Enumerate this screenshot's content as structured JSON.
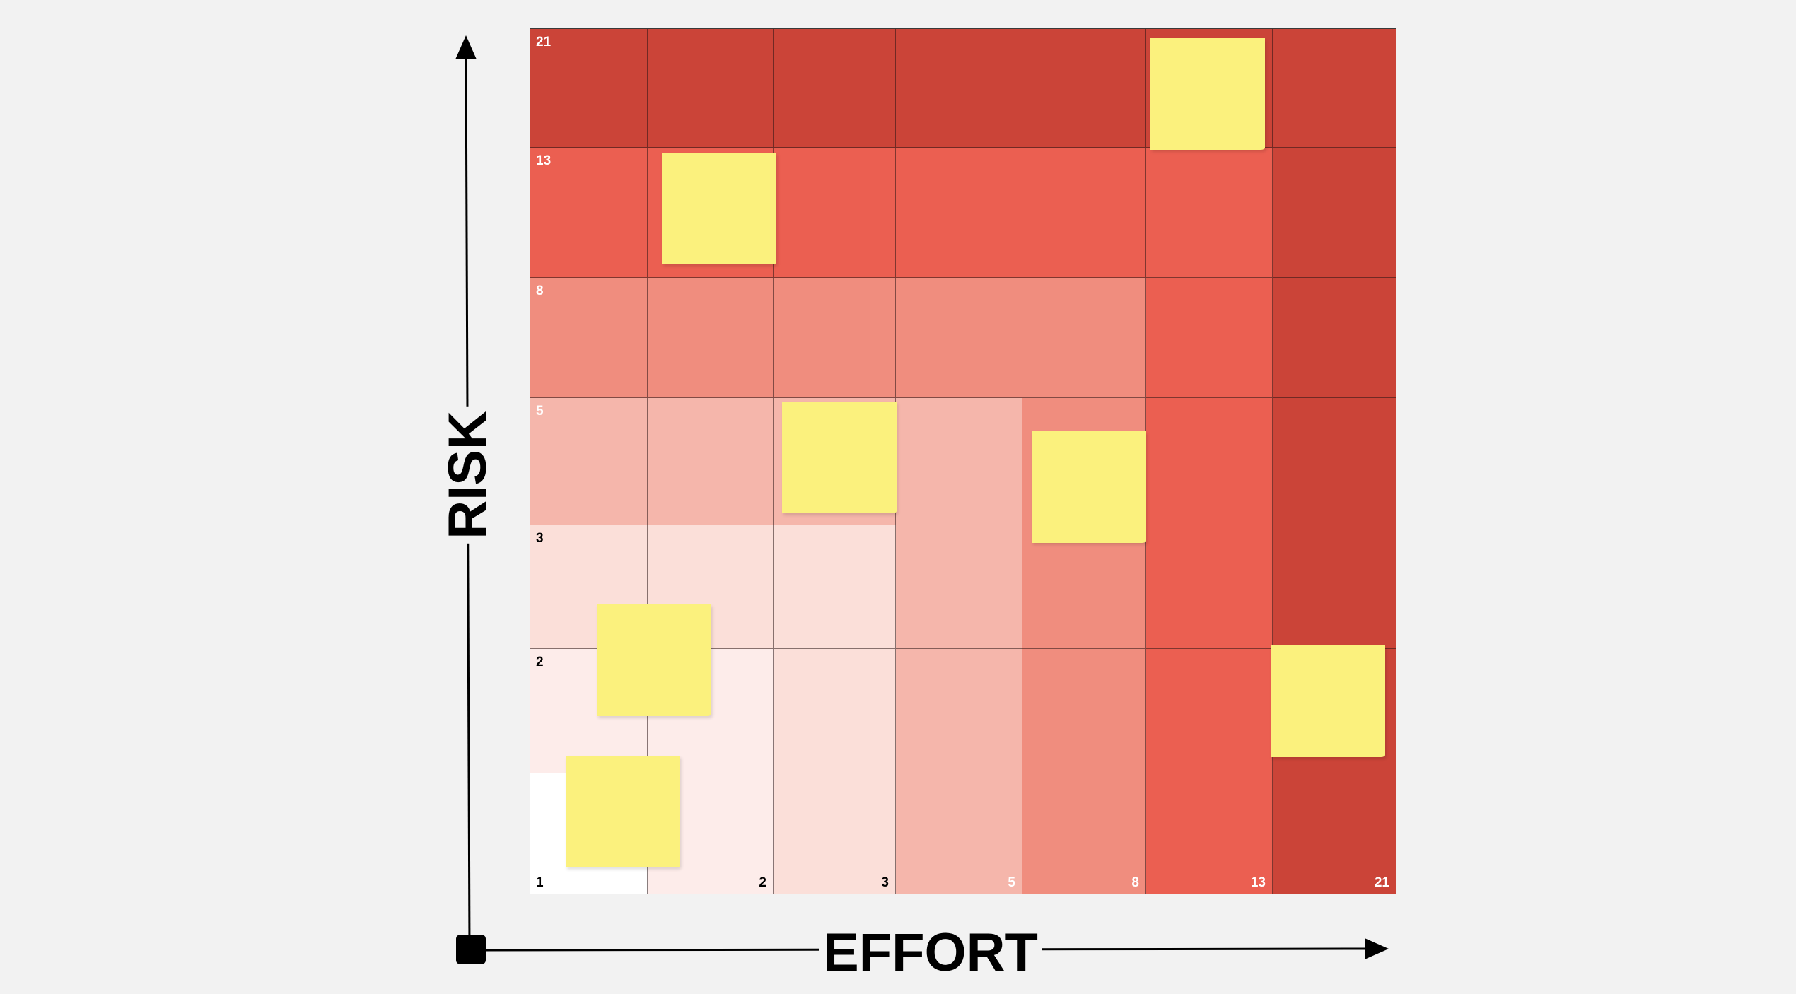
{
  "axes": {
    "x_title": "EFFORT",
    "y_title": "RISK"
  },
  "grid": {
    "column_labels": [
      "1",
      "2",
      "3",
      "5",
      "8",
      "13",
      "21"
    ],
    "row_labels": [
      "21",
      "13",
      "8",
      "5",
      "3",
      "2",
      "1"
    ],
    "cell_colors": [
      [
        "#cb4438",
        "#cb4438",
        "#cb4438",
        "#cb4438",
        "#cb4438",
        "#cb4438",
        "#cb4438"
      ],
      [
        "#eb5f51",
        "#eb5f51",
        "#eb5f51",
        "#eb5f51",
        "#eb5f51",
        "#eb5f51",
        "#cb4438"
      ],
      [
        "#f08d7e",
        "#f08d7e",
        "#f08d7e",
        "#f08d7e",
        "#f08d7e",
        "#eb5f51",
        "#cb4438"
      ],
      [
        "#f5b6ab",
        "#f5b6ab",
        "#f5b6ab",
        "#f5b6ab",
        "#f08d7e",
        "#eb5f51",
        "#cb4438"
      ],
      [
        "#fbdfd9",
        "#fbdfd9",
        "#fbdfd9",
        "#f5b6ab",
        "#f08d7e",
        "#eb5f51",
        "#cb4438"
      ],
      [
        "#fdecea",
        "#fdecea",
        "#fbdfd9",
        "#f5b6ab",
        "#f08d7e",
        "#eb5f51",
        "#cb4438"
      ],
      [
        "#ffffff",
        "#fdecea",
        "#fbdfd9",
        "#f5b6ab",
        "#f08d7e",
        "#eb5f51",
        "#cb4438"
      ]
    ],
    "light_label_color": "#ffffff",
    "dark_label_color": "#000000"
  },
  "sticky_notes": [
    {
      "effort": "13",
      "risk": "21",
      "color": "#fbf17d"
    },
    {
      "effort": "2",
      "risk": "13",
      "color": "#fbf17d"
    },
    {
      "effort": "3",
      "risk": "5",
      "color": "#fbf17d"
    },
    {
      "effort": "8",
      "risk": "5",
      "color": "#fbf17d"
    },
    {
      "effort": "2",
      "risk": "2",
      "color": "#fbf17d"
    },
    {
      "effort": "21",
      "risk": "2",
      "color": "#fbf17d"
    },
    {
      "effort": "1",
      "risk": "1",
      "color": "#fbf17d"
    }
  ]
}
